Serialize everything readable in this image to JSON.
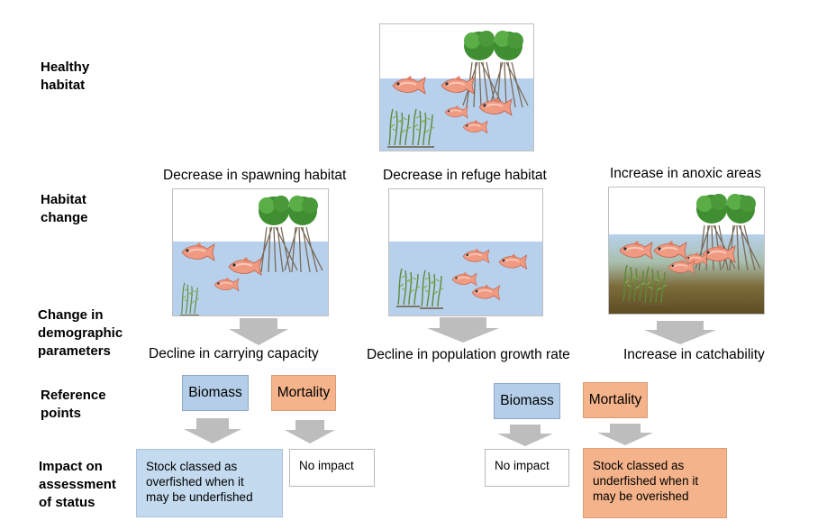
{
  "rows": {
    "healthy": "Healthy\nhabitat",
    "change": "Habitat\nchange",
    "demographic": "Change in\ndemographic\nparameters",
    "reference": "Reference\npoints",
    "impact": "Impact on\nassessment\nof status"
  },
  "columns": [
    {
      "habitat_change": "Decrease in spawning habitat",
      "demographic": "Decline in carrying capacity"
    },
    {
      "habitat_change": "Decrease in refuge habitat",
      "demographic": "Decline in population growth rate"
    },
    {
      "habitat_change": "Increase in anoxic areas",
      "demographic": "Increase in catchability"
    }
  ],
  "reference_points": {
    "left_biomass": "Biomass",
    "left_mortality": "Mortality",
    "right_biomass": "Biomass",
    "right_mortality": "Mortality"
  },
  "impacts": {
    "left_biomass": "Stock classed as\noverfished when it\nmay be underfished",
    "left_mortality": "No impact",
    "right_biomass": "No impact",
    "right_mortality": "Stock classed as\nunderfished when it\nmay be overished"
  },
  "colors": {
    "water": "#b7d1ec",
    "fish": "#f09a82",
    "mangrove_leaf": "#4a9a3a",
    "biomass_box": "#b4cde8",
    "mortality_box": "#f4b38a",
    "arrow": "#bdbdbd",
    "anoxic": "#6b5a2a"
  },
  "icons": [
    "fish-icon",
    "mangrove-icon",
    "seagrass-icon",
    "down-arrow-icon"
  ]
}
